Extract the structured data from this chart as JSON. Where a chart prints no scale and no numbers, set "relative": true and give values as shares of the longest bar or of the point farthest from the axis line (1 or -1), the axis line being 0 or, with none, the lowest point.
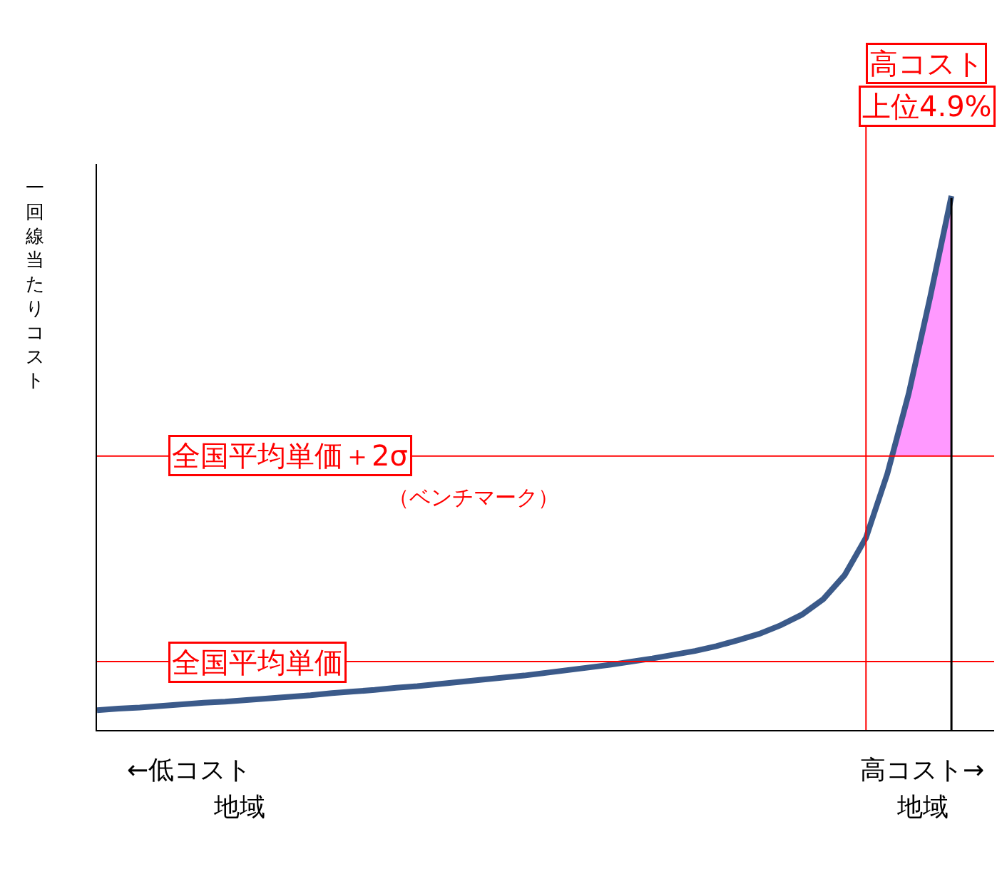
{
  "chart_data": {
    "type": "line",
    "relative": true,
    "ylabel": "一回線当たりコスト",
    "categories": [
      null,
      null,
      null,
      null,
      null,
      null,
      null,
      null,
      null,
      null,
      null,
      null,
      null,
      null,
      null,
      null,
      null,
      null,
      null,
      null,
      null,
      null,
      null,
      null,
      null,
      null,
      null,
      null,
      null,
      null,
      null,
      null,
      null,
      null,
      null,
      null,
      null,
      null,
      null,
      null,
      null
    ],
    "marker": "none",
    "line_style": "solid",
    "series": [
      {
        "color": "#3b5a8a",
        "values": [
          0.037,
          0.04,
          0.042,
          0.045,
          0.048,
          0.051,
          0.053,
          0.056,
          0.059,
          0.062,
          0.065,
          0.069,
          0.072,
          0.075,
          0.079,
          0.082,
          0.086,
          0.09,
          0.094,
          0.098,
          0.102,
          0.107,
          0.112,
          0.117,
          0.122,
          0.128,
          0.134,
          0.141,
          0.148,
          0.157,
          0.168,
          0.18,
          0.196,
          0.216,
          0.245,
          0.29,
          0.36,
          0.48,
          0.63,
          0.81,
          1.0
        ]
      }
    ],
    "ref_lines": [
      {
        "axis": "y",
        "value": 0.513,
        "label": "全国平均単価＋2σ",
        "color": "#ff0000"
      },
      {
        "axis": "y",
        "value": 0.128,
        "label": "全国平均単価",
        "color": "#ff0000"
      }
    ],
    "annotations": [
      "（ベンチマーク）",
      "高コスト",
      "上位4.9%",
      "←低コスト",
      "地域",
      "高コスト→",
      "地域"
    ]
  }
}
